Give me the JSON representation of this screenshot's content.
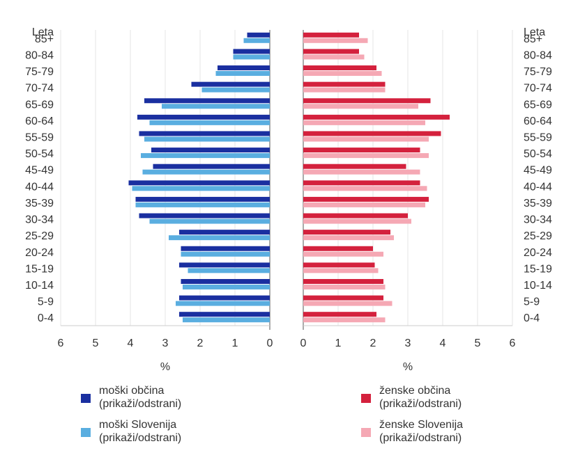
{
  "chart_data": {
    "type": "bar",
    "layout": "population-pyramid",
    "y_header": "Leta",
    "categories": [
      "0-4",
      "5-9",
      "10-14",
      "15-19",
      "20-24",
      "25-29",
      "30-34",
      "35-39",
      "40-44",
      "45-49",
      "50-54",
      "55-59",
      "60-64",
      "65-69",
      "70-74",
      "75-79",
      "80-84",
      "85+"
    ],
    "left_panel": {
      "xlabel": "%",
      "xlim": [
        6,
        0
      ],
      "ticks": [
        "6",
        "5",
        "4",
        "3",
        "2",
        "1",
        "0"
      ],
      "series": [
        {
          "name": "moški občina",
          "color": "#1a2fa0",
          "values": [
            2.6,
            2.6,
            2.55,
            2.6,
            2.55,
            2.6,
            3.75,
            3.85,
            4.05,
            3.35,
            3.4,
            3.75,
            3.8,
            3.6,
            2.25,
            1.5,
            1.05,
            0.65
          ]
        },
        {
          "name": "moški Slovenija",
          "color": "#5aaee0",
          "values": [
            2.5,
            2.7,
            2.5,
            2.35,
            2.55,
            2.9,
            3.45,
            3.85,
            3.95,
            3.65,
            3.7,
            3.6,
            3.45,
            3.1,
            1.95,
            1.55,
            1.05,
            0.75
          ]
        }
      ]
    },
    "right_panel": {
      "xlabel": "%",
      "xlim": [
        0,
        6
      ],
      "ticks": [
        "0",
        "1",
        "2",
        "3",
        "4",
        "5",
        "6"
      ],
      "series": [
        {
          "name": "ženske občina",
          "color": "#d4213d",
          "values": [
            2.1,
            2.3,
            2.3,
            2.05,
            2.0,
            2.5,
            3.0,
            3.6,
            3.35,
            2.95,
            3.35,
            3.95,
            4.2,
            3.65,
            2.35,
            2.1,
            1.6,
            1.6
          ]
        },
        {
          "name": "ženske Slovenija",
          "color": "#f5a8b4",
          "values": [
            2.35,
            2.55,
            2.35,
            2.15,
            2.3,
            2.6,
            3.1,
            3.5,
            3.55,
            3.35,
            3.6,
            3.6,
            3.5,
            3.3,
            2.35,
            2.25,
            1.75,
            1.85
          ]
        }
      ]
    },
    "grid": true
  },
  "legend": [
    {
      "label": "moški občina",
      "action": "(prikaži/odstrani)",
      "color": "#1a2fa0"
    },
    {
      "label": "moški Slovenija",
      "action": "(prikaži/odstrani)",
      "color": "#5aaee0"
    },
    {
      "label": "ženske občina",
      "action": "(prikaži/odstrani)",
      "color": "#d4213d"
    },
    {
      "label": "ženske Slovenija",
      "action": "(prikaži/odstrani)",
      "color": "#f5a8b4"
    }
  ]
}
